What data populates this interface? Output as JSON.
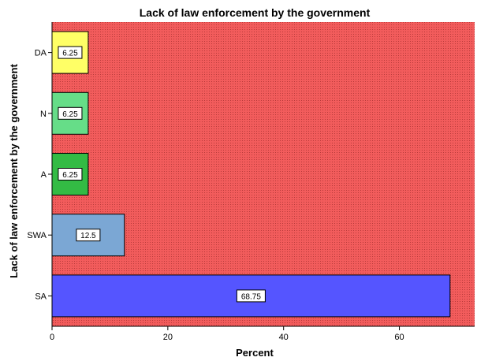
{
  "chart_data": {
    "type": "bar",
    "orientation": "horizontal",
    "title": "Lack of law enforcement by the government",
    "xlabel": "Percent",
    "ylabel": "Lack of law enforcement by the government",
    "xlim": [
      0,
      73
    ],
    "x_ticks": [
      0,
      20,
      40,
      60
    ],
    "categories": [
      "DA",
      "N",
      "A",
      "SWA",
      "SA"
    ],
    "values": [
      6.25,
      6.25,
      6.25,
      12.5,
      68.75
    ],
    "data_labels": [
      "6.25",
      "6.25",
      "6.25",
      "12.5",
      "68.75"
    ],
    "bar_colors": [
      "#FFFF66",
      "#66DD88",
      "#33BB44",
      "#7BA7D4",
      "#5555FF"
    ],
    "plot_background": "#F25C5C",
    "grid": false
  }
}
